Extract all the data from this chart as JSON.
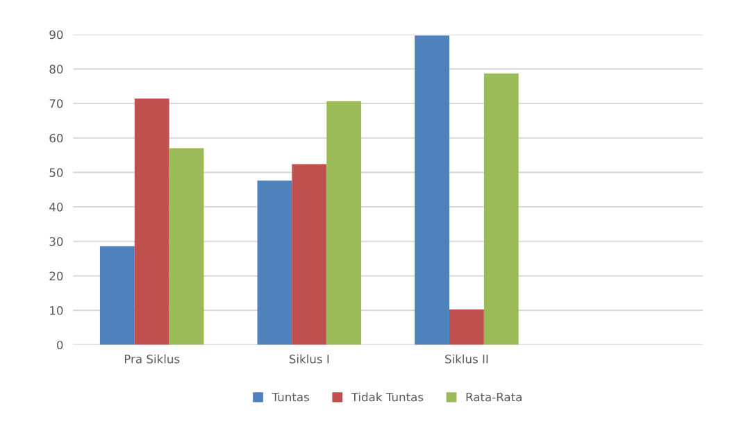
{
  "chart_data": {
    "type": "bar",
    "categories": [
      "Pra Siklus",
      "Siklus I",
      "Siklus II",
      null
    ],
    "series": [
      {
        "name": "Tuntas",
        "color": "#4f81bd",
        "values": [
          28.6,
          47.6,
          89.7,
          null
        ]
      },
      {
        "name": "Tidak Tuntas",
        "color": "#c0504d",
        "values": [
          71.4,
          52.4,
          10.3,
          null
        ]
      },
      {
        "name": "Rata-Rata",
        "color": "#9bbb59",
        "values": [
          57.0,
          70.6,
          78.7,
          null
        ]
      }
    ],
    "ylim": [
      0,
      90
    ],
    "yticks": [
      0,
      10,
      20,
      30,
      40,
      50,
      60,
      70,
      80,
      90
    ],
    "grid": "y",
    "legend": "bottom"
  }
}
